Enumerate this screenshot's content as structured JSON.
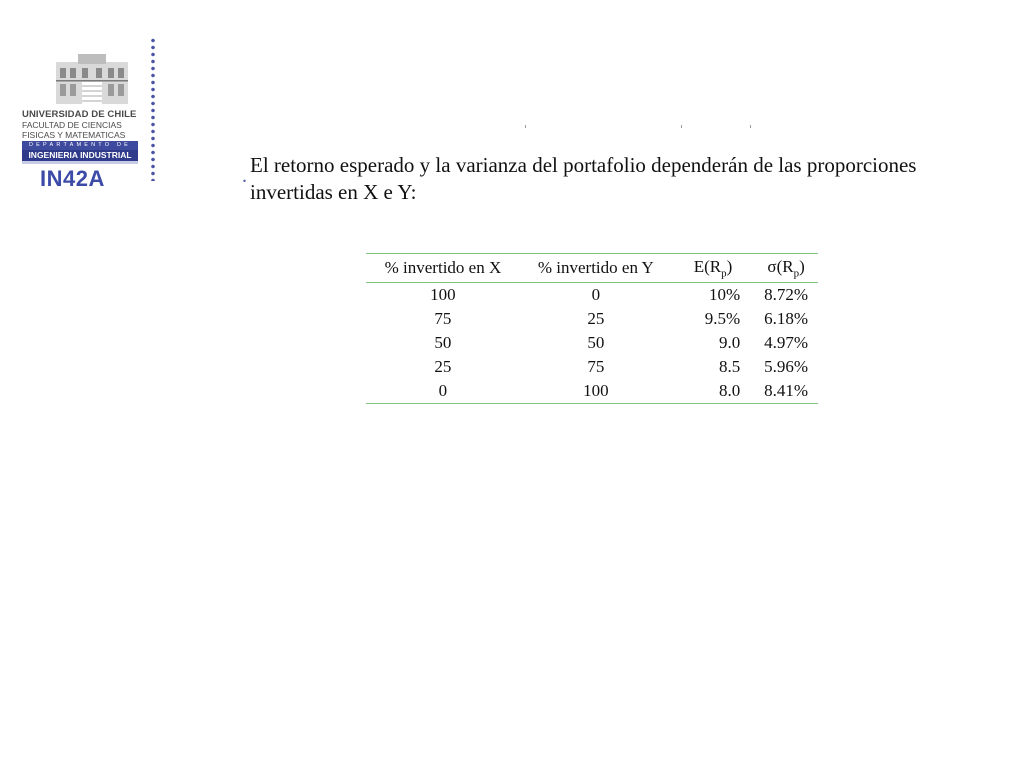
{
  "logo": {
    "university": "UNIVERSIDAD DE CHILE",
    "faculty_line1": "FACULTAD DE CIENCIAS",
    "faculty_line2": "FISICAS Y MATEMATICAS",
    "department_label": "DEPARTAMENTO DE",
    "department_name": "INGENIERIA INDUSTRIAL",
    "course_code": "IN42A",
    "brand_color": "#3c4aa8"
  },
  "slide": {
    "bullet": ".",
    "paragraph": "El retorno esperado y la varianza del portafolio dependerán de las proporciones invertidas en X e Y:"
  },
  "table": {
    "headers": {
      "x_pct": "% invertido en X",
      "y_pct": "% invertido en Y",
      "expected_return": "E(R",
      "expected_return_sub": "p",
      "expected_return_close": ")",
      "std_dev": "σ(R",
      "std_dev_sub": "p",
      "std_dev_close": ")"
    },
    "rows": [
      {
        "x": "100",
        "y": "0",
        "er": "10%",
        "sd": "8.72%"
      },
      {
        "x": "75",
        "y": "25",
        "er": "9.5%",
        "sd": "6.18%"
      },
      {
        "x": "50",
        "y": "50",
        "er": "9.0",
        "sd": "4.97%"
      },
      {
        "x": "25",
        "y": "75",
        "er": "8.5",
        "sd": "5.96%"
      },
      {
        "x": "0",
        "y": "100",
        "er": "8.0",
        "sd": "8.41%"
      }
    ],
    "rule_color": "#7ec47e"
  }
}
